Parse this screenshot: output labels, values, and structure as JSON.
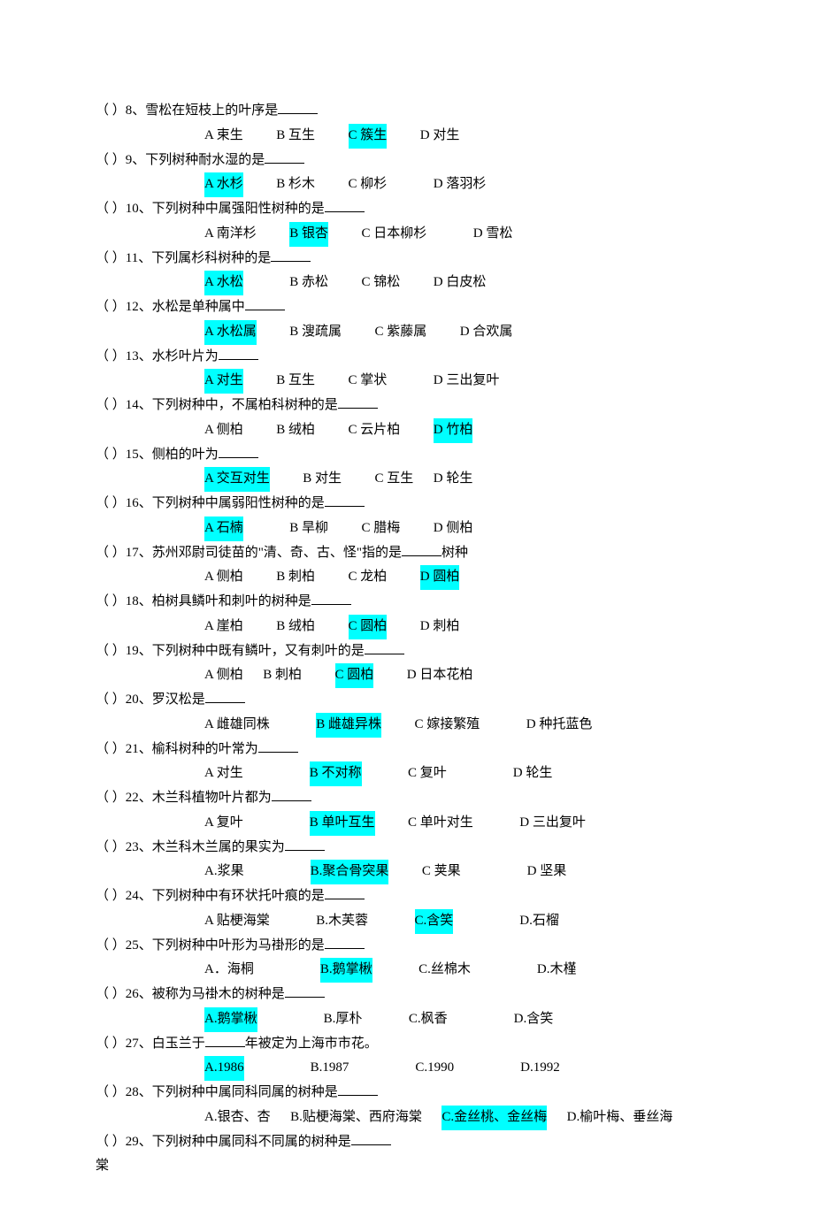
{
  "highlight_color": "#00ffff",
  "text_color": "#000000",
  "background_color": "#ffffff",
  "questions": [
    {
      "num": "8",
      "text": "雪松在短枝上的叶序是",
      "opts": [
        "A 束生",
        "B 互生",
        "C 簇生",
        "D 对生"
      ],
      "ans": 2
    },
    {
      "num": "9",
      "text": "下列树种耐水湿的是",
      "opts": [
        "A 水杉",
        "B 杉木",
        "C 柳杉",
        "D 落羽杉"
      ],
      "ans": 0
    },
    {
      "num": "10",
      "text": "下列树种中属强阳性树种的是",
      "opts": [
        "A 南洋杉",
        "B 银杏",
        "C 日本柳杉",
        "D 雪松"
      ],
      "ans": 1
    },
    {
      "num": "11",
      "text": "下列属杉科树种的是",
      "opts": [
        "A 水松",
        "B 赤松",
        "C 锦松",
        "D 白皮松"
      ],
      "ans": 0
    },
    {
      "num": "12",
      "text": "水松是单种属中",
      "opts": [
        "A 水松属",
        "B 溲疏属",
        "C 紫藤属",
        "D 合欢属"
      ],
      "ans": 0
    },
    {
      "num": "13",
      "text": "水杉叶片为",
      "opts": [
        "A 对生",
        "B 互生",
        "C 掌状",
        "D 三出复叶"
      ],
      "ans": 0
    },
    {
      "num": "14",
      "text": "下列树种中，不属柏科树种的是",
      "opts": [
        "A 侧柏",
        "B 绒柏",
        "C 云片柏",
        "D 竹柏"
      ],
      "ans": 3
    },
    {
      "num": "15",
      "text": "侧柏的叶为",
      "opts": [
        "A 交互对生",
        "B 对生",
        "C 互生",
        "D 轮生"
      ],
      "ans": 0
    },
    {
      "num": "16",
      "text": "下列树种中属弱阳性树种的是",
      "opts": [
        "A 石楠",
        "B 旱柳",
        "C 腊梅",
        "D 侧柏"
      ],
      "ans": 0
    },
    {
      "num": "17",
      "text": "苏州邓尉司徒苗的\"清、奇、古、怪\"指的是",
      "tail": "树种",
      "opts": [
        "A 侧柏",
        "B 刺柏",
        "C 龙柏",
        "D 圆柏"
      ],
      "ans": 3
    },
    {
      "num": "18",
      "text": "柏树具鳞叶和刺叶的树种是",
      "opts": [
        "A 崖柏",
        "B 绒柏",
        "C 圆柏",
        "D 刺柏"
      ],
      "ans": 2
    },
    {
      "num": "19",
      "text": "下列树种中既有鳞叶，又有刺叶的是",
      "opts": [
        "A 侧柏",
        "B 刺柏",
        "C 圆柏",
        "D 日本花柏"
      ],
      "ans": 2
    },
    {
      "num": "20",
      "text": "罗汉松是",
      "opts": [
        "A 雌雄同株",
        "B 雌雄异株",
        "C 嫁接繁殖",
        "D 种托蓝色"
      ],
      "ans": 1
    },
    {
      "num": "21",
      "text": "榆科树种的叶常为",
      "opts": [
        "A 对生",
        "B 不对称",
        "C 复叶",
        "D 轮生"
      ],
      "ans": 1
    },
    {
      "num": "22",
      "text": "木兰科植物叶片都为",
      "opts": [
        "A 复叶",
        "B 单叶互生",
        "C 单叶对生",
        "D 三出复叶"
      ],
      "ans": 1
    },
    {
      "num": "23",
      "text": "木兰科木兰属的果实为",
      "opts": [
        "A.浆果",
        "B.聚合骨突果",
        "C 荚果",
        "D 坚果"
      ],
      "ans": 1
    },
    {
      "num": "24",
      "text": "下列树种中有环状托叶痕的是",
      "opts": [
        "A 贴梗海棠",
        "B.木芙蓉",
        "C.含笑",
        "D.石榴"
      ],
      "ans": 2
    },
    {
      "num": "25",
      "text": "下列树种中叶形为马褂形的是",
      "opts": [
        "A．海桐",
        "B.鹅掌楸",
        "C.丝棉木",
        "D.木槿"
      ],
      "ans": 1
    },
    {
      "num": "26",
      "text": "被称为马褂木的树种是",
      "opts": [
        "A.鹅掌楸",
        "B.厚朴",
        "C.枫香",
        "D.含笑"
      ],
      "ans": 0
    },
    {
      "num": "27",
      "text": "白玉兰于",
      "tail": "年被定为上海市市花。",
      "opts": [
        "A.1986",
        "B.1987",
        "C.1990",
        "D.1992"
      ],
      "ans": 0
    },
    {
      "num": "28",
      "text": "下列树种中属同科同属的树种是",
      "opts": [
        "A.银杏、杏",
        "B.贴梗海棠、西府海棠",
        "C.金丝桃、金丝梅",
        "D.榆叶梅、垂丝海"
      ],
      "ans": 2
    },
    {
      "num": "29",
      "text": "下列树种中属同科不同属的树种是",
      "opts": []
    }
  ],
  "tail_28": "棠"
}
